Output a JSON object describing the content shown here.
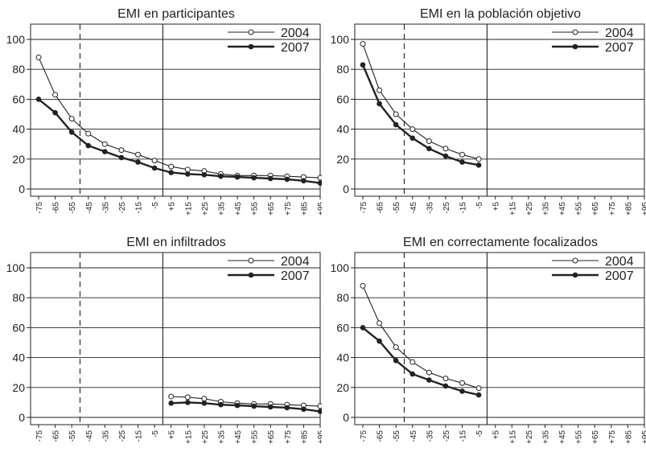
{
  "chart_data": [
    {
      "type": "line",
      "title": "EMI en participantes",
      "x": [
        "-75",
        "-65",
        "-55",
        "-45",
        "-35",
        "-25",
        "-15",
        "-5",
        "+5",
        "+15",
        "+25",
        "+35",
        "+45",
        "+55",
        "+65",
        "+75",
        "+85",
        "+95"
      ],
      "ylim": [
        0,
        100
      ],
      "yticks": [
        "0",
        "20",
        "40",
        "60",
        "80",
        "100"
      ],
      "vlines": [
        {
          "between": [
            "-55",
            "-45"
          ],
          "style": "dashed"
        },
        {
          "between": [
            "-5",
            "+5"
          ],
          "style": "solid"
        }
      ],
      "grid": "horizontal",
      "legend_position": "top-right",
      "series": [
        {
          "name": "2004",
          "marker": "hollow-circle",
          "color": "#222222",
          "values": [
            88,
            63,
            47,
            37,
            30,
            26,
            23,
            19,
            15,
            13,
            12,
            10,
            9,
            9,
            9,
            8.5,
            8,
            7.5
          ]
        },
        {
          "name": "2007",
          "marker": "filled-circle",
          "color": "#222222",
          "values": [
            60,
            51,
            38,
            29,
            25,
            21,
            18,
            14,
            11,
            10,
            9.5,
            8.5,
            8,
            7.5,
            7,
            6.5,
            5.5,
            4
          ]
        }
      ]
    },
    {
      "type": "line",
      "title": "EMI en la población objetivo",
      "x": [
        "-75",
        "-65",
        "-55",
        "-45",
        "-35",
        "-25",
        "-15",
        "-5",
        "+5",
        "+15",
        "+25",
        "+35",
        "+45",
        "+55",
        "+65",
        "+75",
        "+85",
        "+95"
      ],
      "ylim": [
        0,
        100
      ],
      "yticks": [
        "0",
        "20",
        "40",
        "60",
        "80",
        "100"
      ],
      "vlines": [
        {
          "between": [
            "-55",
            "-45"
          ],
          "style": "dashed"
        },
        {
          "between": [
            "-5",
            "+5"
          ],
          "style": "solid"
        }
      ],
      "grid": "horizontal",
      "legend_position": "top-right",
      "series": [
        {
          "name": "2004",
          "marker": "hollow-circle",
          "color": "#222222",
          "values": [
            97,
            66,
            50,
            40,
            32,
            27,
            23,
            20,
            null,
            null,
            null,
            null,
            null,
            null,
            null,
            null,
            null,
            null
          ]
        },
        {
          "name": "2007",
          "marker": "filled-circle",
          "color": "#222222",
          "values": [
            83,
            57,
            43,
            34,
            27,
            22,
            18,
            16,
            null,
            null,
            null,
            null,
            null,
            null,
            null,
            null,
            null,
            null
          ]
        }
      ]
    },
    {
      "type": "line",
      "title": "EMI en infiltrados",
      "x": [
        "-75",
        "-65",
        "-55",
        "-45",
        "-35",
        "-25",
        "-15",
        "-5",
        "+5",
        "+15",
        "+25",
        "+35",
        "+45",
        "+55",
        "+65",
        "+75",
        "+85",
        "+95"
      ],
      "ylim": [
        0,
        100
      ],
      "yticks": [
        "0",
        "20",
        "40",
        "60",
        "80",
        "100"
      ],
      "vlines": [
        {
          "between": [
            "-55",
            "-45"
          ],
          "style": "dashed"
        },
        {
          "between": [
            "-5",
            "+5"
          ],
          "style": "solid"
        }
      ],
      "grid": "horizontal",
      "legend_position": "top-right",
      "series": [
        {
          "name": "2004",
          "marker": "hollow-circle",
          "color": "#222222",
          "values": [
            null,
            null,
            null,
            null,
            null,
            null,
            null,
            null,
            14,
            13.5,
            12.5,
            10.5,
            9.5,
            9,
            9,
            8.5,
            8,
            7.5
          ]
        },
        {
          "name": "2007",
          "marker": "filled-circle",
          "color": "#222222",
          "values": [
            null,
            null,
            null,
            null,
            null,
            null,
            null,
            null,
            9.5,
            10,
            9.5,
            8.5,
            8,
            7.5,
            7,
            6.5,
            5.5,
            4
          ]
        }
      ]
    },
    {
      "type": "line",
      "title": "EMI en correctamente focalizados",
      "x": [
        "-75",
        "-65",
        "-55",
        "-45",
        "-35",
        "-25",
        "-15",
        "-5",
        "+5",
        "+15",
        "+25",
        "+35",
        "+45",
        "+55",
        "+65",
        "+75",
        "+85",
        "+95"
      ],
      "ylim": [
        0,
        100
      ],
      "yticks": [
        "0",
        "20",
        "40",
        "60",
        "80",
        "100"
      ],
      "vlines": [
        {
          "between": [
            "-55",
            "-45"
          ],
          "style": "dashed"
        },
        {
          "between": [
            "-5",
            "+5"
          ],
          "style": "solid"
        }
      ],
      "grid": "horizontal",
      "legend_position": "top-right",
      "series": [
        {
          "name": "2004",
          "marker": "hollow-circle",
          "color": "#222222",
          "values": [
            88,
            63,
            47,
            37,
            30,
            26,
            23,
            19.5,
            null,
            null,
            null,
            null,
            null,
            null,
            null,
            null,
            null,
            null
          ]
        },
        {
          "name": "2007",
          "marker": "filled-circle",
          "color": "#222222",
          "values": [
            60,
            51,
            38,
            29,
            25,
            21,
            17.5,
            15,
            null,
            null,
            null,
            null,
            null,
            null,
            null,
            null,
            null,
            null
          ]
        }
      ]
    }
  ]
}
